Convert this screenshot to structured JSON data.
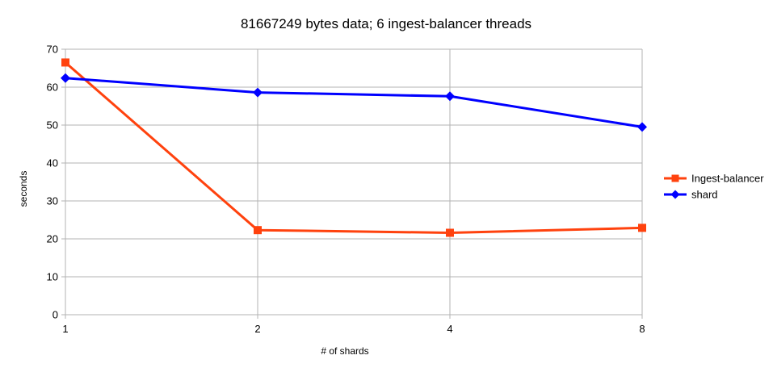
{
  "chart_data": {
    "type": "line",
    "title": "81667249 bytes data; 6 ingest-balancer threads",
    "xlabel": "# of shards",
    "ylabel": "seconds",
    "categories": [
      "1",
      "2",
      "4",
      "8"
    ],
    "ylim": [
      0,
      70
    ],
    "yticks": [
      0,
      10,
      20,
      30,
      40,
      50,
      60,
      70
    ],
    "grid": true,
    "legend_position": "right",
    "series": [
      {
        "name": "Ingest-balancer",
        "values": [
          66.5,
          22.3,
          21.6,
          22.9
        ],
        "color": "#ff420e",
        "marker": "square"
      },
      {
        "name": "shard",
        "values": [
          62.4,
          58.6,
          57.6,
          49.5
        ],
        "color": "#0000ff",
        "marker": "diamond"
      }
    ]
  }
}
